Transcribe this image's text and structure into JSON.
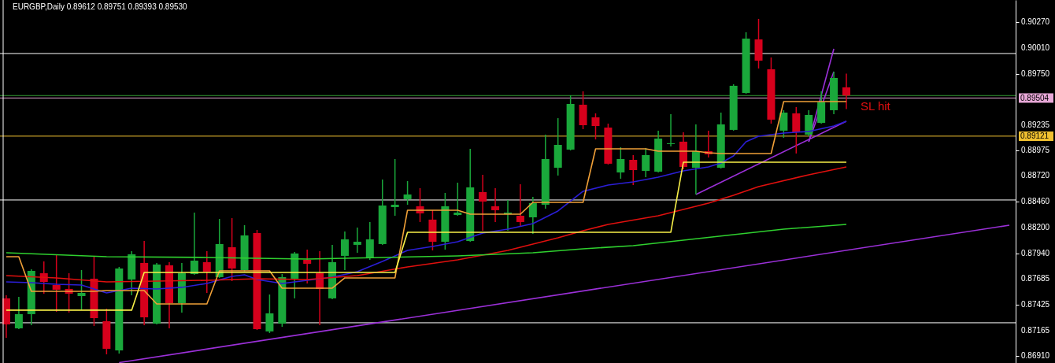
{
  "chart_data": {
    "type": "candlestick",
    "title": "EURGBP,Daily 0.89612 0.89751 0.89393 0.89530",
    "categories": [
      null,
      null,
      null,
      null,
      null,
      null,
      null,
      null,
      null,
      null,
      null,
      null,
      null,
      null,
      null,
      null,
      null,
      null,
      null,
      null,
      null,
      null,
      null,
      null,
      null,
      null,
      null,
      null,
      null,
      null,
      null,
      null,
      null,
      null,
      null,
      null,
      null,
      null,
      null,
      null,
      null,
      null,
      null,
      null,
      null,
      null,
      null,
      null,
      null,
      null,
      null,
      null,
      null,
      null,
      null,
      null,
      null,
      null,
      null,
      null,
      null,
      null,
      null,
      null,
      null,
      null,
      null,
      null,
      null,
      null,
      null,
      null,
      null,
      null,
      null,
      null,
      null,
      null,
      null,
      null,
      null
    ],
    "ohlc": [
      [
        0.87487,
        0.87518,
        0.8709,
        0.87225
      ],
      [
        0.87185,
        0.87502,
        0.87177,
        0.87328
      ],
      [
        0.87328,
        0.8778,
        0.87217,
        0.87764
      ],
      [
        0.8774,
        0.87859,
        0.87534,
        0.87653
      ],
      [
        0.87621,
        0.87923,
        0.87352,
        0.87574
      ],
      [
        0.87582,
        0.8774,
        0.87344,
        0.87534
      ],
      [
        0.8751,
        0.87772,
        0.87376,
        0.87542
      ],
      [
        0.87685,
        0.87907,
        0.87209,
        0.87288
      ],
      [
        0.87257,
        0.87383,
        0.86923,
        0.86979
      ],
      [
        0.86963,
        0.87804,
        0.86931,
        0.87788
      ],
      [
        0.87677,
        0.87962,
        0.87518,
        0.87931
      ],
      [
        0.87843,
        0.88065,
        0.87217,
        0.87296
      ],
      [
        0.87233,
        0.87843,
        0.87225,
        0.87828
      ],
      [
        0.8782,
        0.87851,
        0.87185,
        0.87439
      ],
      [
        0.87439,
        0.87843,
        0.87344,
        0.8774
      ],
      [
        0.87732,
        0.88351,
        0.87724,
        0.87867
      ],
      [
        0.87851,
        0.87962,
        0.87542,
        0.87756
      ],
      [
        0.87701,
        0.88287,
        0.87693,
        0.88034
      ],
      [
        0.88002,
        0.88295,
        0.87661,
        0.87788
      ],
      [
        0.87772,
        0.88224,
        0.87756,
        0.88121
      ],
      [
        0.88145,
        0.88176,
        0.87169,
        0.87177
      ],
      [
        0.87154,
        0.87526,
        0.87138,
        0.87336
      ],
      [
        0.87233,
        0.87732,
        0.87201,
        0.87701
      ],
      [
        0.87685,
        0.87954,
        0.87487,
        0.87939
      ],
      [
        0.87875,
        0.87978,
        0.87637,
        0.87835
      ],
      [
        0.8774,
        0.87962,
        0.87217,
        0.87582
      ],
      [
        0.87487,
        0.88026,
        0.87479,
        0.87851
      ],
      [
        0.87915,
        0.88161,
        0.87772,
        0.88081
      ],
      [
        0.88026,
        0.882,
        0.87946,
        0.88057
      ],
      [
        0.87891,
        0.88256,
        0.87875,
        0.88081
      ],
      [
        0.88034,
        0.88684,
        0.88026,
        0.88422
      ],
      [
        0.88406,
        0.8889,
        0.88319,
        0.8843
      ],
      [
        0.88486,
        0.88668,
        0.8843,
        0.88533
      ],
      [
        0.88414,
        0.88597,
        0.88256,
        0.88343
      ],
      [
        0.8828,
        0.88375,
        0.8797,
        0.88057
      ],
      [
        0.88057,
        0.88549,
        0.87978,
        0.88414
      ],
      [
        0.88327,
        0.88652,
        0.88319,
        0.88351
      ],
      [
        0.88065,
        0.88993,
        0.88057,
        0.88605
      ],
      [
        0.88557,
        0.88732,
        0.88169,
        0.88462
      ],
      [
        0.88414,
        0.88597,
        0.88256,
        0.88375
      ],
      [
        0.88335,
        0.88478,
        0.88169,
        0.88351
      ],
      [
        0.88319,
        0.88636,
        0.88216,
        0.88256
      ],
      [
        0.88303,
        0.88509,
        0.88137,
        0.88446
      ],
      [
        0.8843,
        0.89136,
        0.88391,
        0.8889
      ],
      [
        0.88803,
        0.89302,
        0.88724,
        0.89033
      ],
      [
        0.88985,
        0.89532,
        0.88977,
        0.89445
      ],
      [
        0.89437,
        0.89572,
        0.89191,
        0.89231
      ],
      [
        0.8931,
        0.8935,
        0.89088,
        0.89223
      ],
      [
        0.89207,
        0.89247,
        0.88835,
        0.88843
      ],
      [
        0.88755,
        0.89009,
        0.88692,
        0.8889
      ],
      [
        0.88882,
        0.8893,
        0.88628,
        0.88779
      ],
      [
        0.88771,
        0.89001,
        0.88708,
        0.8893
      ],
      [
        0.88763,
        0.89176,
        0.88755,
        0.89096
      ],
      [
        0.89041,
        0.89342,
        0.89017,
        0.89049
      ],
      [
        0.89065,
        0.8916,
        0.88787,
        0.88811
      ],
      [
        0.88803,
        0.89239,
        0.88533,
        0.88969
      ],
      [
        0.88969,
        0.89176,
        0.88906,
        0.88938
      ],
      [
        0.88803,
        0.89358,
        0.88795,
        0.89239
      ],
      [
        0.89184,
        0.89643,
        0.89176,
        0.89628
      ],
      [
        0.89556,
        0.90167,
        0.89548,
        0.90103
      ],
      [
        0.90095,
        0.90302,
        0.89802,
        0.89881
      ],
      [
        0.89794,
        0.89913,
        0.89247,
        0.89287
      ],
      [
        0.89176,
        0.89382,
        0.89104,
        0.89358
      ],
      [
        0.8935,
        0.89414,
        0.88946,
        0.8916
      ],
      [
        0.89136,
        0.89382,
        0.8912,
        0.89334
      ],
      [
        0.89255,
        0.89572,
        0.89247,
        0.89461
      ],
      [
        0.89382,
        0.8977,
        0.89342,
        0.89707
      ],
      [
        0.89612,
        0.89751,
        0.89393,
        0.8953
      ],
      null,
      null,
      null,
      null,
      null,
      null,
      null,
      null,
      null,
      null,
      null,
      null,
      null
    ],
    "colors": [
      "#d6001c",
      "#1aa83b",
      "#1aa83b",
      "#d6001c",
      "#d6001c",
      "#d6001c",
      "#1aa83b",
      "#d6001c",
      "#d6001c",
      "#1aa83b",
      "#1aa83b",
      "#d6001c",
      "#1aa83b",
      "#d6001c",
      "#1aa83b",
      "#1aa83b",
      "#d6001c",
      "#1aa83b",
      "#d6001c",
      "#1aa83b",
      "#d6001c",
      "#1aa83b",
      "#1aa83b",
      "#1aa83b",
      "#d6001c",
      "#d6001c",
      "#1aa83b",
      "#1aa83b",
      "#1aa83b",
      "#1aa83b",
      "#1aa83b",
      "#1aa83b",
      "#1aa83b",
      "#d6001c",
      "#d6001c",
      "#1aa83b",
      "#1aa83b",
      "#1aa83b",
      "#d6001c",
      "#d6001c",
      "#1aa83b",
      "#d6001c",
      "#1aa83b",
      "#1aa83b",
      "#1aa83b",
      "#1aa83b",
      "#d6001c",
      "#d6001c",
      "#d6001c",
      "#1aa83b",
      "#d6001c",
      "#1aa83b",
      "#1aa83b",
      "#1aa83b",
      "#d6001c",
      "#1aa83b",
      "#d6001c",
      "#1aa83b",
      "#1aa83b",
      "#1aa83b",
      "#d6001c",
      "#d6001c",
      "#1aa83b",
      "#d6001c",
      "#1aa83b",
      "#1aa83b",
      "#1aa83b",
      "#d6001c",
      null,
      null,
      null,
      null,
      null,
      null,
      null,
      null,
      null,
      null,
      null,
      null,
      null
    ],
    "series": [
      {
        "type": "line",
        "color": "#2b1ed6",
        "values": [
          0.87653,
          null,
          0.87645,
          null,
          0.87629,
          null,
          0.87621,
          null,
          0.87542,
          null,
          0.8759,
          null,
          0.87582,
          null,
          0.87598,
          null,
          0.87637,
          null,
          0.87709,
          0.87724,
          0.87677,
          null,
          0.87637,
          null,
          0.87669,
          null,
          0.87701,
          null,
          0.87756,
          null,
          0.87859,
          null,
          0.8797,
          null,
          0.8801,
          null,
          0.88057,
          null,
          0.88145,
          null,
          0.88184,
          null,
          0.8824,
          null,
          0.88367,
          null,
          0.88565,
          null,
          0.88628,
          null,
          0.8866,
          null,
          0.88708,
          null,
          0.88771,
          null,
          0.88811,
          0.8885,
          0.88922,
          0.89065,
          0.8912,
          null,
          0.89152,
          null,
          0.89168,
          null,
          0.89223,
          0.89271,
          null,
          null,
          null,
          null,
          null,
          null,
          null,
          null,
          null,
          null,
          null,
          null,
          null
        ]
      },
      {
        "type": "line",
        "color": "#e0100e",
        "values": [
          0.87716,
          null,
          null,
          null,
          0.87693,
          null,
          null,
          null,
          0.87653,
          null,
          null,
          null,
          0.87661,
          null,
          null,
          null,
          0.87669,
          null,
          null,
          null,
          0.87685,
          null,
          null,
          null,
          0.87677,
          null,
          null,
          null,
          0.87716,
          null,
          null,
          null,
          0.87804,
          null,
          null,
          null,
          0.87875,
          null,
          null,
          null,
          0.8797,
          null,
          0.88034,
          null,
          0.88097,
          null,
          0.88169,
          null,
          0.88232,
          null,
          null,
          null,
          0.88319,
          null,
          null,
          null,
          0.88446,
          null,
          0.88525,
          null,
          0.88613,
          null,
          null,
          null,
          0.88732,
          null,
          null,
          0.88811,
          null,
          null,
          null,
          null,
          null,
          null,
          null,
          null,
          null,
          null,
          null,
          null,
          null
        ]
      },
      {
        "type": "line",
        "color": "#2fd02f",
        "values": [
          0.87946,
          null,
          null,
          null,
          null,
          null,
          null,
          null,
          0.87907,
          null,
          null,
          null,
          null,
          null,
          null,
          null,
          0.87899,
          null,
          null,
          null,
          null,
          null,
          null,
          null,
          0.87883,
          null,
          null,
          null,
          null,
          null,
          0.87899,
          null,
          null,
          null,
          null,
          null,
          0.87915,
          null,
          null,
          null,
          null,
          null,
          0.87946,
          null,
          null,
          null,
          0.87986,
          null,
          null,
          null,
          0.88018,
          null,
          null,
          null,
          0.88073,
          null,
          null,
          null,
          0.88129,
          null,
          null,
          null,
          0.88184,
          null,
          null,
          null,
          null,
          0.88232,
          null,
          null,
          null,
          null,
          null,
          null,
          null,
          null,
          null,
          null,
          null,
          null,
          null
        ]
      },
      {
        "type": "line",
        "color": "#f0a038",
        "values": [
          0.87907,
          0.87907,
          0.87558,
          0.87558,
          0.87558,
          0.87558,
          0.87558,
          0.87558,
          0.87566,
          0.87566,
          0.87566,
          0.87566,
          0.87431,
          0.87431,
          0.87431,
          0.87431,
          0.87431,
          0.87764,
          0.87764,
          0.87764,
          0.87764,
          0.87764,
          0.8759,
          0.8759,
          0.8759,
          0.8759,
          0.8759,
          0.87693,
          0.87693,
          0.87693,
          0.87693,
          0.87693,
          0.88375,
          0.88375,
          0.88375,
          0.88375,
          0.88375,
          0.88335,
          0.88335,
          0.88335,
          0.88335,
          0.88335,
          0.88454,
          0.88454,
          0.88454,
          0.88454,
          0.88454,
          0.88993,
          0.88993,
          0.88993,
          0.88993,
          0.88993,
          0.88969,
          0.88969,
          0.88969,
          0.88969,
          0.88954,
          0.88946,
          0.88946,
          0.88946,
          0.88946,
          0.88946,
          0.89469,
          0.89469,
          0.89469,
          0.89469,
          0.89469,
          0.89469,
          null,
          null,
          null,
          null,
          null,
          null,
          null,
          null,
          null,
          null,
          null,
          null,
          null
        ]
      },
      {
        "type": "line",
        "color": "#f8f048",
        "values": [
          0.87368,
          0.87368,
          0.87368,
          0.87368,
          0.87368,
          0.87368,
          0.87368,
          0.87368,
          0.87368,
          0.87368,
          0.87368,
          0.87748,
          0.87748,
          0.87748,
          0.87748,
          0.87748,
          0.87748,
          0.87748,
          0.87748,
          0.87748,
          0.87748,
          0.87748,
          0.87748,
          0.87748,
          0.87748,
          0.87748,
          0.87748,
          0.87748,
          0.87748,
          0.87748,
          0.87748,
          0.87748,
          0.88153,
          0.88153,
          0.88153,
          0.88153,
          0.88153,
          0.88153,
          0.88153,
          0.88153,
          0.88153,
          0.88153,
          0.88153,
          0.88153,
          0.88153,
          0.88153,
          0.88153,
          0.88153,
          0.88153,
          0.88153,
          0.88153,
          0.88153,
          0.88153,
          0.88153,
          0.88858,
          0.88858,
          0.88858,
          0.88858,
          0.88858,
          0.88858,
          0.88858,
          0.88858,
          0.88858,
          0.88858,
          0.88858,
          0.88858,
          0.88858,
          0.88858,
          null,
          null,
          null,
          null,
          null,
          null,
          null,
          null,
          null,
          null,
          null,
          null,
          null
        ]
      },
      {
        "type": "line",
        "color": "#9b30d8",
        "values": [
          null,
          null,
          null,
          null,
          null,
          null,
          null,
          null,
          null,
          0.8684,
          null,
          null,
          null,
          null,
          null,
          null,
          null,
          null,
          null,
          null,
          null,
          null,
          null,
          null,
          null,
          null,
          null,
          null,
          null,
          null,
          null,
          null,
          null,
          null,
          null,
          null,
          null,
          null,
          null,
          null,
          null,
          null,
          null,
          null,
          null,
          null,
          null,
          null,
          null,
          null,
          null,
          null,
          null,
          null,
          null,
          null,
          null,
          null,
          null,
          null,
          null,
          null,
          null,
          null,
          null,
          null,
          null,
          null,
          null,
          null,
          null,
          null,
          null,
          null,
          null,
          null,
          null,
          null,
          null,
          null,
          0.88224
        ]
      },
      {
        "type": "line",
        "color": "#9b30d8",
        "values": [
          null,
          null,
          null,
          null,
          null,
          null,
          null,
          null,
          null,
          null,
          null,
          null,
          null,
          null,
          null,
          null,
          null,
          null,
          null,
          null,
          null,
          null,
          null,
          null,
          null,
          null,
          null,
          null,
          null,
          null,
          null,
          null,
          null,
          null,
          null,
          null,
          null,
          null,
          null,
          null,
          null,
          null,
          null,
          null,
          null,
          null,
          null,
          null,
          null,
          null,
          null,
          null,
          null,
          null,
          null,
          0.88533,
          null,
          null,
          null,
          null,
          null,
          null,
          null,
          null,
          null,
          null,
          null,
          0.89271,
          null,
          null,
          null,
          null,
          null,
          null,
          null,
          null,
          null,
          null,
          null,
          null,
          null
        ]
      },
      {
        "type": "line",
        "color": "#9b30d8",
        "values": [
          null,
          null,
          null,
          null,
          null,
          null,
          null,
          null,
          null,
          null,
          null,
          null,
          null,
          null,
          null,
          null,
          null,
          null,
          null,
          null,
          null,
          null,
          null,
          null,
          null,
          null,
          null,
          null,
          null,
          null,
          null,
          null,
          null,
          null,
          null,
          null,
          null,
          null,
          null,
          null,
          null,
          null,
          null,
          null,
          null,
          null,
          null,
          null,
          null,
          null,
          null,
          null,
          null,
          null,
          null,
          null,
          null,
          null,
          null,
          null,
          null,
          null,
          null,
          null,
          0.89065,
          null,
          0.9,
          null,
          null,
          null,
          null,
          null,
          null,
          null,
          null,
          null,
          null,
          null,
          null,
          null,
          null
        ]
      },
      {
        "type": "line",
        "color": "#9b30d8",
        "values": [
          null,
          null,
          null,
          null,
          null,
          null,
          null,
          null,
          null,
          null,
          null,
          null,
          null,
          null,
          null,
          null,
          null,
          null,
          null,
          null,
          null,
          null,
          null,
          null,
          null,
          null,
          null,
          null,
          null,
          null,
          null,
          null,
          null,
          null,
          null,
          null,
          null,
          null,
          null,
          null,
          null,
          null,
          null,
          null,
          null,
          null,
          null,
          null,
          null,
          null,
          null,
          null,
          null,
          null,
          null,
          null,
          null,
          null,
          null,
          null,
          null,
          null,
          null,
          null,
          0.89065,
          null,
          0.8977,
          null,
          null,
          null,
          null,
          null,
          null,
          null,
          null,
          null,
          null,
          null,
          null,
          null,
          null
        ]
      }
    ],
    "ylim": [
      0.86836,
      0.90492
    ],
    "yticks": [
      {
        "value": 0.9027,
        "label": "0.90270"
      },
      {
        "value": 0.9001,
        "label": "0.90010"
      },
      {
        "value": 0.8975,
        "label": "0.89750"
      },
      {
        "value": 0.89235,
        "label": "0.89235"
      },
      {
        "value": 0.88975,
        "label": "0.88975"
      },
      {
        "value": 0.8872,
        "label": "0.88720"
      },
      {
        "value": 0.8846,
        "label": "0.88460"
      },
      {
        "value": 0.882,
        "label": "0.88200"
      },
      {
        "value": 0.8794,
        "label": "0.87940"
      },
      {
        "value": 0.87685,
        "label": "0.87685"
      },
      {
        "value": 0.87425,
        "label": "0.87425"
      },
      {
        "value": 0.87165,
        "label": "0.87165"
      },
      {
        "value": 0.8691,
        "label": "0.86910"
      }
    ],
    "ref_lines": [
      {
        "axis": "y",
        "value": 0.89953,
        "color": "#ffffff"
      },
      {
        "axis": "y",
        "value": 0.88478,
        "color": "#ffffff"
      },
      {
        "axis": "y",
        "value": 0.87241,
        "color": "#ffffff"
      },
      {
        "axis": "y",
        "value": 0.8953,
        "color": "#2e8b2e"
      },
      {
        "axis": "y",
        "value": 0.89504,
        "label": "0.89504",
        "color": "#e8a8d8"
      },
      {
        "axis": "y",
        "value": 0.89121,
        "label": "0.89121",
        "color": "#f0c030"
      }
    ],
    "annotations": [
      "SL hit"
    ]
  }
}
